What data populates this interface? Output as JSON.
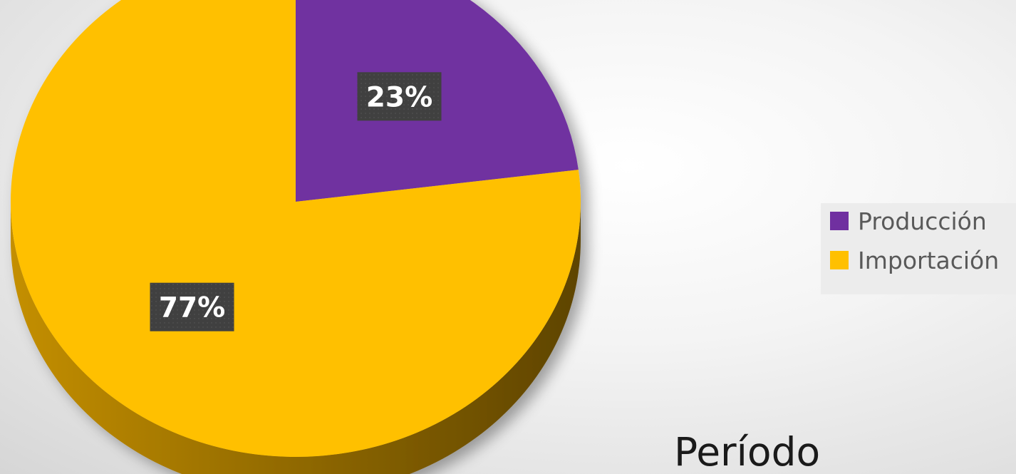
{
  "chart_data": {
    "type": "pie",
    "style": "3d",
    "slices": [
      {
        "name": "Producción",
        "value": 23,
        "label": "23%",
        "color": "#7030A0"
      },
      {
        "name": "Importación",
        "value": 77,
        "label": "77%",
        "color": "#FFC000"
      }
    ],
    "legend": {
      "placement": "right",
      "entries": [
        "Producción",
        "Importación"
      ]
    },
    "label_box_color": "#404040"
  },
  "caption": "Período"
}
